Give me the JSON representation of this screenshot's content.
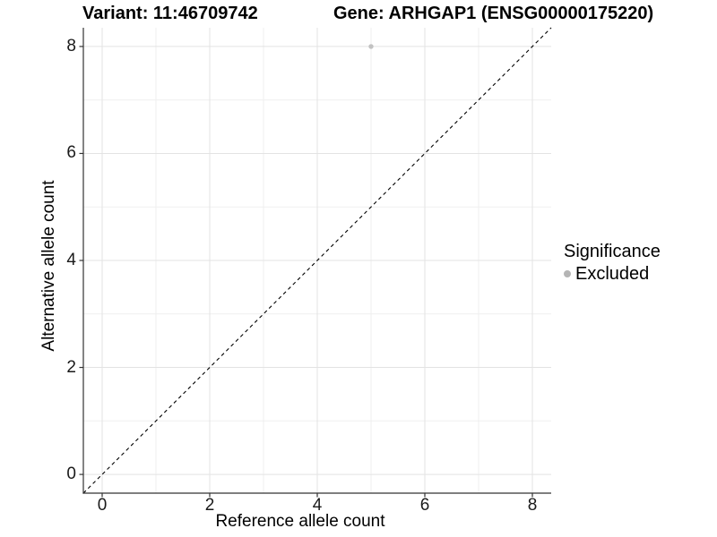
{
  "header": {
    "variant_title": "Variant: 11:46709742",
    "gene_title": "Gene: ARHGAP1 (ENSG00000175220)"
  },
  "chart_data": {
    "type": "scatter",
    "title_left": "Variant: 11:46709742",
    "title_right": "Gene: ARHGAP1 (ENSG00000175220)",
    "xlabel": "Reference allele count",
    "ylabel": "Alternative allele count",
    "xlim": [
      -0.35,
      8.35
    ],
    "ylim": [
      -0.35,
      8.35
    ],
    "x_ticks": [
      0,
      2,
      4,
      6,
      8
    ],
    "y_ticks": [
      0,
      2,
      4,
      6,
      8
    ],
    "x_minor_ticks": [
      1,
      3,
      5,
      7
    ],
    "y_minor_ticks": [
      1,
      3,
      5,
      7
    ],
    "grid": "major and minor gridlines, light gray on white panel",
    "points": [
      {
        "x": 5,
        "y": 8,
        "series": "Excluded",
        "color": "#bebebe"
      }
    ],
    "identity_line": {
      "style": "dashed",
      "slope": 1,
      "intercept": 0,
      "from": [
        -0.35,
        -0.35
      ],
      "to": [
        8.35,
        8.35
      ]
    },
    "legend": {
      "title": "Significance",
      "position": "right",
      "entries": [
        {
          "label": "Excluded",
          "color": "#b5b5b5"
        }
      ]
    }
  },
  "colors": {
    "background": "#ffffff",
    "point": "#c2c2c2",
    "legend_key": "#b0b0b0",
    "grid_major": "#e3e3e3",
    "grid_minor": "#efefef",
    "axis_line": "#333333",
    "tick_mark": "#333333",
    "identity_line": "#000000"
  }
}
